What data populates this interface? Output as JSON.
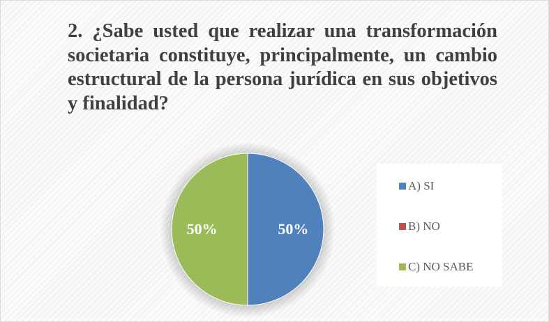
{
  "chart_data": {
    "type": "pie",
    "title": "2. ¿Sabe usted que realizar una transformación societaria constituye, principalmente, un cambio estructural de la persona jurídica en sus objetivos y finalidad?",
    "categories": [
      "A) SI",
      "B) NO",
      "C) NO SABE"
    ],
    "values": [
      50,
      0,
      50
    ],
    "value_labels": [
      "50%",
      null,
      "50%"
    ],
    "colors": [
      "#4f81bd",
      "#c0504d",
      "#9bbb59"
    ],
    "legend": "right"
  }
}
